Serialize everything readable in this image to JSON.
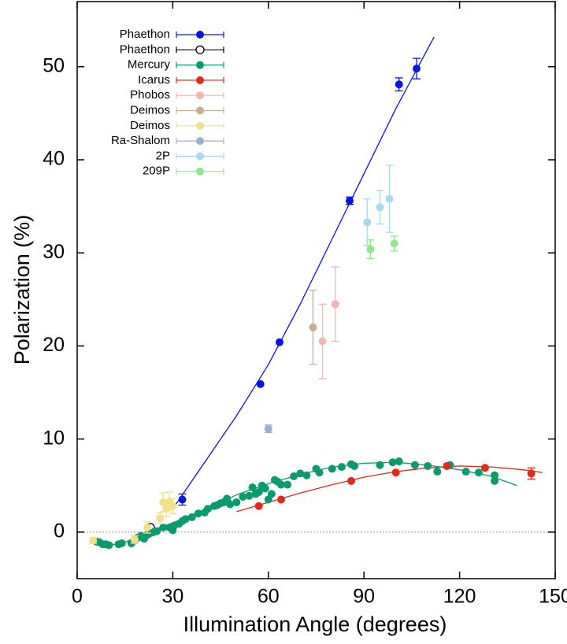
{
  "chart_data": {
    "type": "scatter",
    "x_label": "Illumination Angle (degrees)",
    "y_label": "Polarization (%)",
    "xlim": [
      0,
      150
    ],
    "ylim": [
      -5,
      57
    ],
    "xticks": [
      0,
      30,
      60,
      90,
      120,
      150
    ],
    "yticks": [
      0,
      10,
      20,
      30,
      40,
      50
    ],
    "reference_line": 0,
    "legend": "upper left",
    "series": [
      {
        "name": "Phaethon",
        "color": "#0a14e0",
        "x": [
          33,
          57.5,
          63.5,
          85.5,
          101,
          106.5
        ],
        "values": [
          3.5,
          15.9,
          20.4,
          35.6,
          48.1,
          49.8
        ],
        "errors": [
          0.6,
          null,
          null,
          0.4,
          0.7,
          1.1
        ]
      },
      {
        "name": "Phaethon",
        "color": "#000000",
        "hollow": true,
        "x": [
          23
        ],
        "values": [
          0.5
        ],
        "errors": [
          null
        ]
      },
      {
        "name": "Mercury",
        "color": "#0a9a6e",
        "x": [
          6,
          7,
          8,
          9,
          10,
          13,
          14,
          17,
          18,
          19,
          20,
          21,
          22,
          23,
          24,
          25,
          27,
          29,
          30,
          30.5,
          32,
          33,
          34,
          36,
          38,
          40,
          41,
          43,
          44,
          45,
          46,
          47,
          48,
          50,
          52,
          54,
          55,
          56,
          57,
          58,
          59,
          60,
          61,
          62,
          63,
          64,
          66,
          68,
          70,
          72,
          75,
          76,
          80,
          83,
          86,
          87,
          95,
          99,
          101,
          106,
          110,
          113,
          117,
          122,
          126,
          131,
          131
        ],
        "values": [
          -1,
          -1.1,
          -1.3,
          -1.3,
          -1.4,
          -1.3,
          -1.2,
          -1.2,
          -0.9,
          -0.6,
          -0.4,
          -0.7,
          -0.3,
          -0.1,
          0,
          0.1,
          0.5,
          0.5,
          0.2,
          0.7,
          0.9,
          1.2,
          1.4,
          1.6,
          2,
          2.1,
          2.5,
          2.8,
          2.9,
          3.1,
          3.2,
          3.6,
          3,
          3.2,
          3.8,
          3.9,
          4.8,
          4.1,
          4.3,
          5,
          4.7,
          3.5,
          4.1,
          5.6,
          5.4,
          5.1,
          5.1,
          6,
          6.3,
          6.1,
          6.8,
          6.4,
          6.8,
          7,
          7.3,
          7.1,
          7.2,
          7.5,
          7.6,
          7.2,
          7.1,
          6.5,
          7.2,
          6.5,
          6.4,
          6.1,
          5.5
        ]
      },
      {
        "name": "Icarus",
        "color": "#e02a1e",
        "x": [
          57,
          64,
          86,
          100,
          116,
          128,
          142.5
        ],
        "values": [
          2.8,
          3.5,
          5.5,
          6.4,
          7.1,
          6.9,
          6.3
        ],
        "errors": [
          null,
          null,
          null,
          null,
          null,
          null,
          0.6
        ]
      },
      {
        "name": "Phobos",
        "color": "#f4b4b0",
        "x": [
          77,
          81
        ],
        "values": [
          20.5,
          24.5
        ],
        "errors": [
          4,
          4
        ]
      },
      {
        "name": "Deimos",
        "color": "#c8ae8c",
        "x": [
          74
        ],
        "values": [
          22
        ],
        "errors": [
          4
        ]
      },
      {
        "name": "Deimos",
        "color": "#f0e08c",
        "x": [
          5,
          18,
          22,
          26,
          27,
          28,
          29,
          30
        ],
        "values": [
          -0.9,
          -0.8,
          0.5,
          1.5,
          3.2,
          2.5,
          3.3,
          2.8
        ],
        "errors": [
          0.3,
          0.4,
          0.6,
          0.6,
          1,
          0.8,
          1,
          0.8
        ]
      },
      {
        "name": "Ra-Shalom",
        "color": "#9bb0d0",
        "x": [
          60
        ],
        "values": [
          11.1
        ],
        "errors": [
          0.4
        ]
      },
      {
        "name": "2P",
        "color": "#a8d8ec",
        "x": [
          91,
          95,
          98
        ],
        "values": [
          33.3,
          34.9,
          35.8
        ],
        "errors": [
          2.5,
          1.8,
          3.6
        ]
      },
      {
        "name": "209P",
        "color": "#8ee88c",
        "x": [
          92,
          99.5
        ],
        "values": [
          30.4,
          31.0
        ],
        "errors": [
          1.0,
          0.8
        ]
      }
    ],
    "fits": [
      {
        "color": "#0a14e0",
        "x": [
          30,
          40,
          50,
          60,
          70,
          80,
          90,
          100,
          112
        ],
        "values": [
          2.5,
          7.5,
          12.5,
          18,
          24.5,
          31.5,
          38.5,
          45.5,
          53.2
        ]
      },
      {
        "color": "#0a9a6e",
        "x": [
          5,
          10,
          15,
          20,
          30,
          40,
          50,
          60,
          70,
          80,
          90,
          100,
          110,
          120,
          130,
          138
        ],
        "values": [
          -1.2,
          -1.4,
          -1.1,
          -0.3,
          1,
          2.4,
          4,
          5.2,
          6.2,
          7,
          7.4,
          7.5,
          7.2,
          6.7,
          6,
          5
        ]
      },
      {
        "color": "#e02a1e",
        "x": [
          50,
          60,
          70,
          80,
          90,
          100,
          110,
          120,
          130,
          140,
          146
        ],
        "values": [
          2.2,
          3.2,
          4.2,
          5.1,
          5.9,
          6.5,
          6.9,
          7.1,
          7.0,
          6.7,
          6.4
        ]
      }
    ]
  }
}
